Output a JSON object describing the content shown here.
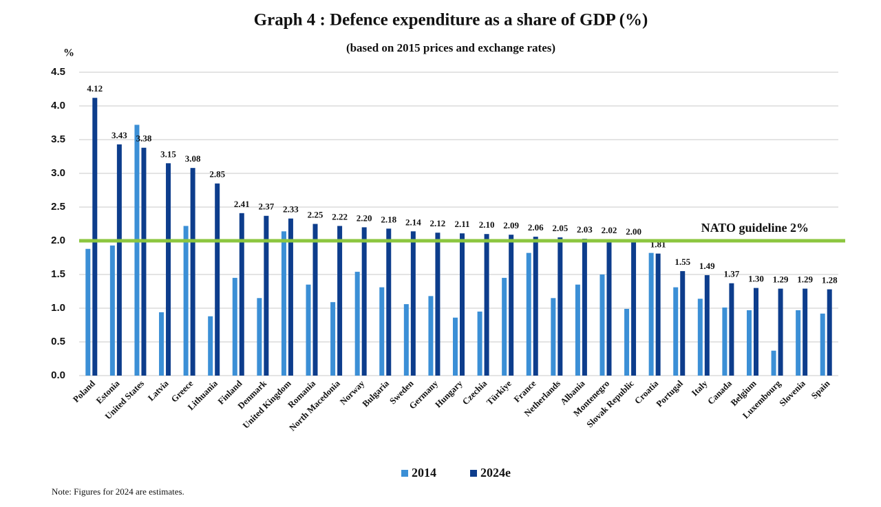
{
  "chart_data": {
    "type": "bar",
    "title": "Graph 4 : Defence expenditure as a share of GDP (%)",
    "subtitle": "(based on 2015 prices and exchange rates)",
    "y_label": "%",
    "note": "Note: Figures for 2024 are estimates.",
    "categories": [
      "Poland",
      "Estonia",
      "United States",
      "Latvia",
      "Greece",
      "Lithuania",
      "Finland",
      "Denmark",
      "United Kingdom",
      "Romania",
      "North Macedonia",
      "Norway",
      "Bulgaria",
      "Sweden",
      "Germany",
      "Hungary",
      "Czechia",
      "Türkiye",
      "France",
      "Netherlands",
      "Albania",
      "Montenegro",
      "Slovak Republic",
      "Croatia",
      "Portugal",
      "Italy",
      "Canada",
      "Belgium",
      "Luxembourg",
      "Slovenia",
      "Spain"
    ],
    "series": [
      {
        "name": "2014",
        "color": "#3b8fd6",
        "values": [
          1.88,
          1.93,
          3.72,
          0.94,
          2.22,
          0.88,
          1.45,
          1.15,
          2.14,
          1.35,
          1.09,
          1.54,
          1.31,
          1.06,
          1.18,
          0.86,
          0.95,
          1.45,
          1.82,
          1.15,
          1.35,
          1.5,
          0.99,
          1.82,
          1.31,
          1.14,
          1.01,
          0.97,
          0.37,
          0.97,
          0.92
        ]
      },
      {
        "name": "2024e",
        "color": "#0d3d8c",
        "values": [
          4.12,
          3.43,
          3.38,
          3.15,
          3.08,
          2.85,
          2.41,
          2.37,
          2.33,
          2.25,
          2.22,
          2.2,
          2.18,
          2.14,
          2.12,
          2.11,
          2.1,
          2.09,
          2.06,
          2.05,
          2.03,
          2.02,
          2.0,
          1.81,
          1.55,
          1.49,
          1.37,
          1.3,
          1.29,
          1.29,
          1.28
        ],
        "value_labels": [
          "4.12",
          "3.43",
          "3.38",
          "3.15",
          "3.08",
          "2.85",
          "2.41",
          "2.37",
          "2.33",
          "2.25",
          "2.22",
          "2.20",
          "2.18",
          "2.14",
          "2.12",
          "2.11",
          "2.10",
          "2.09",
          "2.06",
          "2.05",
          "2.03",
          "2.02",
          "2.00",
          "1.81",
          "1.55",
          "1.49",
          "1.37",
          "1.30",
          "1.29",
          "1.29",
          "1.28"
        ]
      }
    ],
    "ylim": [
      0,
      4.5
    ],
    "yticks": [
      {
        "value": 0,
        "label": "0.0"
      },
      {
        "value": 0.5,
        "label": "0.5"
      },
      {
        "value": 1,
        "label": "1.0"
      },
      {
        "value": 1.5,
        "label": "1.5"
      },
      {
        "value": 2,
        "label": "2.0"
      },
      {
        "value": 2.5,
        "label": "2.5"
      },
      {
        "value": 3,
        "label": "3.0"
      },
      {
        "value": 3.5,
        "label": "3.5"
      },
      {
        "value": 4,
        "label": "4.0"
      },
      {
        "value": 4.5,
        "label": "4.5"
      }
    ],
    "grid": true,
    "reference_line": {
      "value": 2,
      "label": "NATO guideline 2%",
      "color": "#8cc63f"
    },
    "legend": "bottom"
  }
}
